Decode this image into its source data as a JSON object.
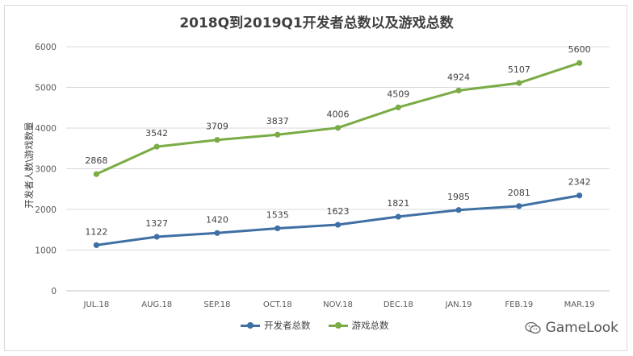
{
  "chart_data": {
    "type": "line",
    "title": "2018Q到2019Q1开发者总数以及游戏总数",
    "ylabel": "开发者人数\\游戏数量",
    "xlabel": "",
    "categories": [
      "JUL.18",
      "AUG.18",
      "SEP.18",
      "OCT.18",
      "NOV.18",
      "DEC.18",
      "JAN.19",
      "FEB.19",
      "MAR.19"
    ],
    "ylim": [
      0,
      6000
    ],
    "yticks": [
      0,
      1000,
      2000,
      3000,
      4000,
      5000,
      6000
    ],
    "grid": true,
    "legend_position": "bottom",
    "series": [
      {
        "name": "开发者总数",
        "color": "#3f6fa3",
        "values": [
          1122,
          1327,
          1420,
          1535,
          1623,
          1821,
          1985,
          2081,
          2342
        ]
      },
      {
        "name": "游戏总数",
        "color": "#7aab45",
        "values": [
          2868,
          3542,
          3709,
          3837,
          4006,
          4509,
          4924,
          5107,
          5600
        ]
      }
    ]
  },
  "watermark": {
    "text": "GameLook",
    "icon": "wechat-icon"
  }
}
